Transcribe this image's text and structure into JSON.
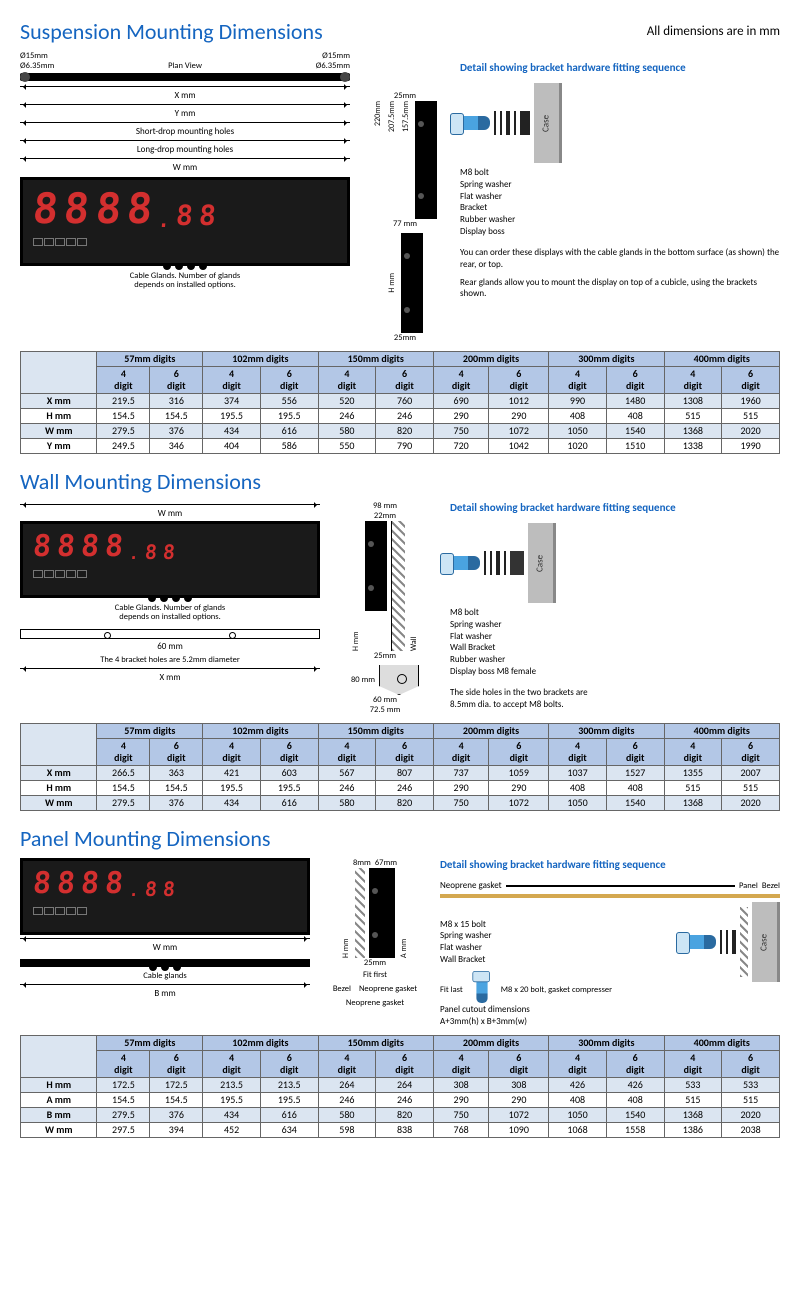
{
  "global": {
    "units_note": "All dimensions are in mm",
    "display_text": "8888.88",
    "gland_note": "Cable Glands. Number of glands\ndepends on installed options.",
    "case_label": "Case"
  },
  "colors": {
    "title": "#1565c0",
    "led": "#d32f2f",
    "table_header_bg": "#b3c7e6",
    "table_band_bg": "#dbe5f1",
    "case_grey": "#bdbdbd",
    "bolt_blue": "#4aa3e0"
  },
  "suspension": {
    "title": "Suspension Mounting Dimensions",
    "plan_view": "Plan View",
    "hole_dia": "Ø15mm",
    "inner_dia": "Ø6.35mm",
    "x_label": "X mm",
    "y_label": "Y mm",
    "short_drop": "Short-drop mounting holes",
    "long_drop": "Long-drop mounting holes",
    "w_label": "W mm",
    "h_label": "H mm",
    "side_w": "77 mm",
    "top_gap": "25mm",
    "side_heights": [
      "220mm",
      "207.5mm",
      "157.5mm"
    ],
    "detail_title": "Detail showing bracket hardware fitting sequence",
    "hardware": [
      "M8 bolt",
      "Spring washer",
      "Flat washer",
      "Bracket",
      "Rubber washer",
      "Display boss"
    ],
    "note1": "You can order these displays with the cable glands in the bottom surface (as shown) the rear, or top.",
    "note2": "Rear glands allow you to mount the display on top of a cubicle, using the brackets shown.",
    "columns": [
      "57mm digits",
      "102mm digits",
      "150mm digits",
      "200mm digits",
      "300mm digits",
      "400mm digits"
    ],
    "sub": [
      "4 digit",
      "6 digit"
    ],
    "rows": [
      "X mm",
      "H mm",
      "W mm",
      "Y mm"
    ],
    "data": [
      [
        219.5,
        316,
        374,
        556,
        520,
        760,
        690,
        1012,
        990,
        1480,
        1308,
        1960
      ],
      [
        154.5,
        154.5,
        195.5,
        195.5,
        246,
        246,
        290,
        290,
        408,
        408,
        515,
        515
      ],
      [
        279.5,
        376,
        434,
        616,
        580,
        820,
        750,
        1072,
        1050,
        1540,
        1368,
        2020
      ],
      [
        249.5,
        346,
        404,
        586,
        550,
        790,
        720,
        1042,
        1020,
        1510,
        1338,
        1990
      ]
    ]
  },
  "wall": {
    "title": "Wall Mounting Dimensions",
    "w_label": "W mm",
    "h_label": "H mm",
    "side_w": "98 mm",
    "side_inset": "22mm",
    "bottom_gap": "25mm",
    "bracket_span": "60 mm",
    "foot_h": "80 mm",
    "foot_w": "60 mm",
    "foot_overall": "72.5 mm",
    "bracket_hole_note": "The 4 bracket holes are 5.2mm diameter",
    "x_label": "X mm",
    "wall_label": "Wall",
    "detail_title": "Detail showing bracket hardware fitting sequence",
    "hardware": [
      "M8 bolt",
      "Spring washer",
      "Flat washer",
      "Wall Bracket",
      "Rubber washer",
      "Display boss M8 female"
    ],
    "side_note": "The side holes in the two brackets are 8.5mm dia. to accept M8 bolts.",
    "rows": [
      "X mm",
      "H mm",
      "W mm"
    ],
    "data": [
      [
        266.5,
        363,
        421,
        603,
        567,
        807,
        737,
        1059,
        1037,
        1527,
        1355,
        2007
      ],
      [
        154.5,
        154.5,
        195.5,
        195.5,
        246,
        246,
        290,
        290,
        408,
        408,
        515,
        515
      ],
      [
        279.5,
        376,
        434,
        616,
        580,
        820,
        750,
        1072,
        1050,
        1540,
        1368,
        2020
      ]
    ]
  },
  "panel": {
    "title": "Panel Mounting Dimensions",
    "h_label": "H mm",
    "a_label": "A mm",
    "w_label": "W mm",
    "b_label": "B mm",
    "bezel_label": "Bezel",
    "gasket_label": "Neoprene gasket",
    "cable_glands": "Cable glands",
    "side_w1": "8mm",
    "side_w2": "67mm",
    "side_gap": "25mm",
    "fit_first": "Fit first",
    "fit_last": "Fit last",
    "detail_title": "Detail showing bracket hardware fitting sequence",
    "panel_label": "Panel",
    "bezel_lbl": "Bezel",
    "hardware": [
      "M8 x 15 bolt",
      "Spring washer",
      "Flat washer",
      "Wall Bracket"
    ],
    "last_bolt": "M8 x 20 bolt, gasket compresser",
    "cutout_caption": "Panel cutout dimensions",
    "cutout_formula": "A+3mm(h) x B+3mm(w)",
    "rows": [
      "H mm",
      "A mm",
      "B mm",
      "W mm"
    ],
    "data": [
      [
        172.5,
        172.5,
        213.5,
        213.5,
        264,
        264,
        308,
        308,
        426,
        426,
        533,
        533
      ],
      [
        154.5,
        154.5,
        195.5,
        195.5,
        246,
        246,
        290,
        290,
        408,
        408,
        515,
        515
      ],
      [
        279.5,
        376,
        434,
        616,
        580,
        820,
        750,
        1072,
        1050,
        1540,
        1368,
        2020
      ],
      [
        297.5,
        394,
        452,
        634,
        598,
        838,
        768,
        1090,
        1068,
        1558,
        1386,
        2038
      ]
    ]
  }
}
